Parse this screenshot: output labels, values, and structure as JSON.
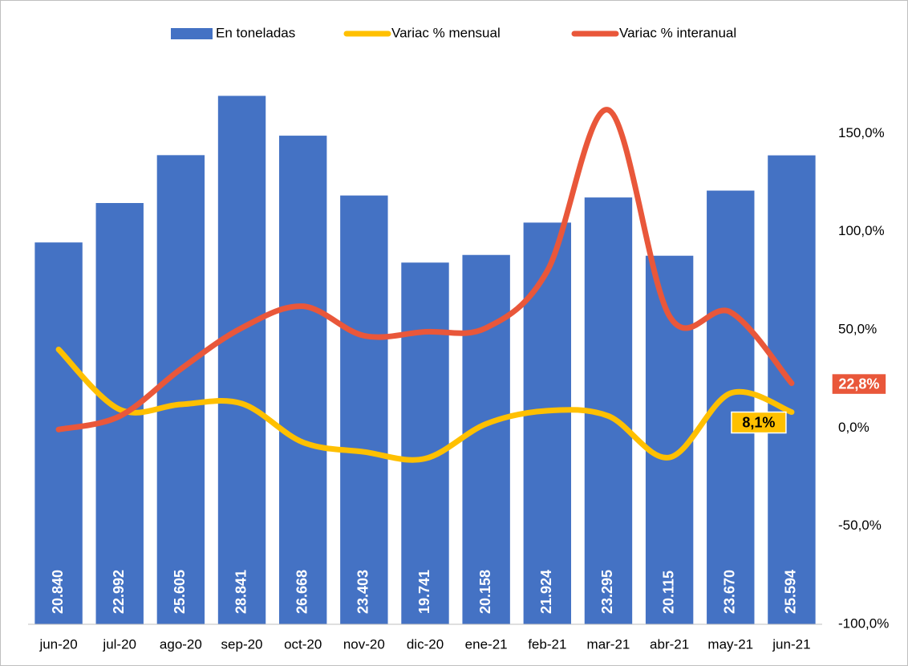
{
  "chart_data": {
    "type": "bar_line",
    "categories": [
      "jun-20",
      "jul-20",
      "ago-20",
      "sep-20",
      "oct-20",
      "nov-20",
      "dic-20",
      "ene-21",
      "feb-21",
      "mar-21",
      "abr-21",
      "may-21",
      "jun-21"
    ],
    "ylim": [
      0,
      30000
    ],
    "y2lim": [
      -100,
      180
    ],
    "y2ticks": [
      {
        "value": -100,
        "label": "-100,0%"
      },
      {
        "value": -50,
        "label": "-50,0%"
      },
      {
        "value": 0,
        "label": "0,0%"
      },
      {
        "value": 50,
        "label": "50,0%"
      },
      {
        "value": 100,
        "label": "100,0%"
      },
      {
        "value": 150,
        "label": "150,0%"
      }
    ],
    "legend": "top",
    "series": [
      {
        "name": "En toneladas",
        "type": "bar",
        "color": "#4472c4",
        "values": [
          20840,
          22992,
          25605,
          28841,
          26668,
          23403,
          19741,
          20158,
          21924,
          23295,
          20115,
          23670,
          25594
        ],
        "value_labels": [
          "20.840",
          "22.992",
          "25.605",
          "28.841",
          "26.668",
          "23.403",
          "19.741",
          "20.158",
          "21.924",
          "23.295",
          "20.115",
          "23.670",
          "25.594"
        ]
      },
      {
        "name": "Variac % mensual",
        "type": "line",
        "axis": "y2",
        "color": "#ffc000",
        "values": [
          40,
          9.4,
          12,
          12.4,
          -7.3,
          -12.2,
          -15.6,
          2.1,
          8.8,
          6.1,
          -15,
          17.7,
          8.1
        ],
        "value_labels": [
          null,
          null,
          null,
          null,
          null,
          null,
          null,
          null,
          null,
          null,
          null,
          null,
          "8,1%"
        ]
      },
      {
        "name": "Variac % interanual",
        "type": "line",
        "axis": "y2",
        "color": "#e9573a",
        "values": [
          -0.8,
          6,
          30,
          51,
          62,
          47,
          49,
          51,
          80,
          162,
          57,
          59,
          22.8
        ],
        "value_labels": [
          null,
          null,
          null,
          null,
          null,
          null,
          null,
          null,
          null,
          null,
          null,
          null,
          "22,8%"
        ]
      }
    ]
  }
}
